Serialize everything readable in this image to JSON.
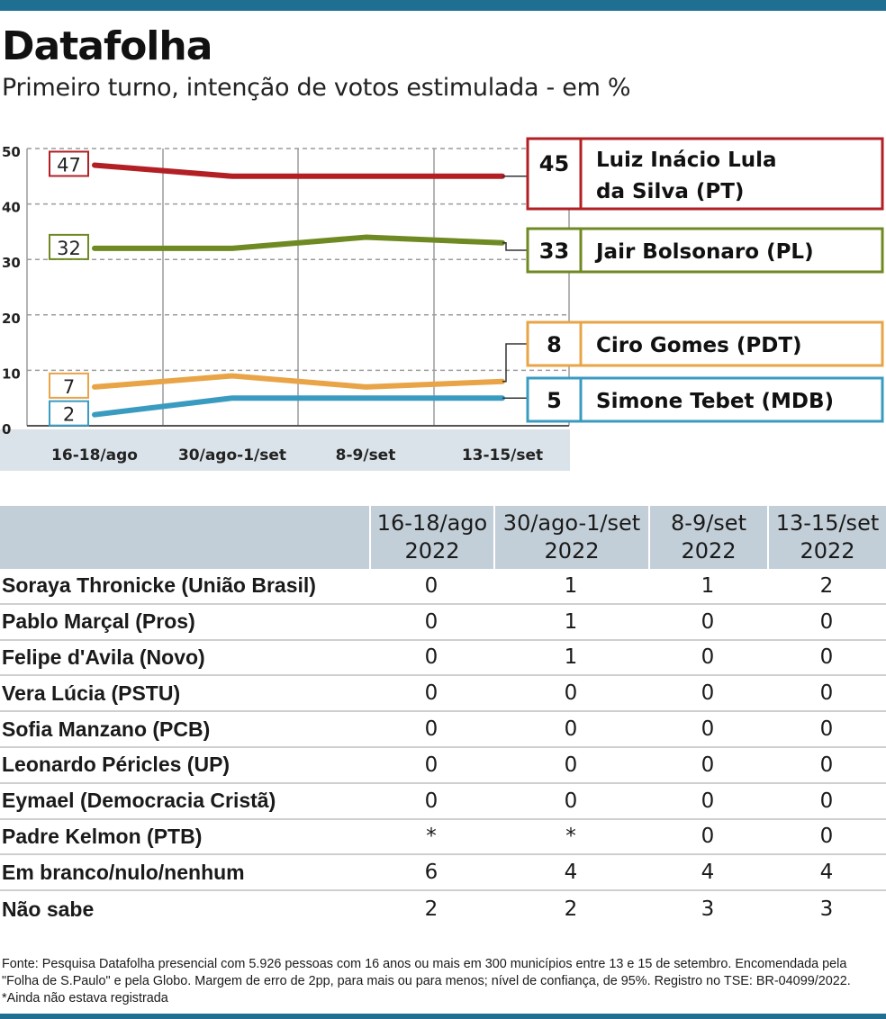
{
  "header": {
    "title": "Datafolha",
    "subtitle": "Primeiro turno, intenção de votos estimulada - em %"
  },
  "chart_data": {
    "type": "line",
    "categories": [
      "16-18/ago",
      "30/ago-1/set",
      "8-9/set",
      "13-15/set"
    ],
    "ylim": [
      0,
      50
    ],
    "yticks": [
      0,
      10,
      20,
      30,
      40,
      50
    ],
    "grid": true,
    "series": [
      {
        "name": "Luiz Inácio Lula da Silva (PT)",
        "name_lines": [
          "Luiz Inácio Lula",
          "da Silva (PT)"
        ],
        "values": [
          47,
          45,
          45,
          45
        ],
        "start_label": "47",
        "end_label": "45",
        "color": "#b21f24"
      },
      {
        "name": "Jair Bolsonaro (PL)",
        "name_lines": [
          "Jair Bolsonaro (PL)"
        ],
        "values": [
          32,
          32,
          34,
          33
        ],
        "start_label": "32",
        "end_label": "33",
        "color": "#6f8a22"
      },
      {
        "name": "Ciro Gomes (PDT)",
        "name_lines": [
          "Ciro Gomes (PDT)"
        ],
        "values": [
          7,
          9,
          7,
          8
        ],
        "start_label": "7",
        "end_label": "8",
        "color": "#e8a447"
      },
      {
        "name": "Simone Tebet (MDB)",
        "name_lines": [
          "Simone Tebet (MDB)"
        ],
        "values": [
          2,
          5,
          5,
          5
        ],
        "start_label": "2",
        "end_label": "5",
        "color": "#3a9bc1"
      }
    ]
  },
  "table": {
    "columns": [
      {
        "period": "16-18/ago",
        "year": "2022"
      },
      {
        "period": "30/ago-1/set",
        "year": "2022"
      },
      {
        "period": "8-9/set",
        "year": "2022"
      },
      {
        "period": "13-15/set",
        "year": "2022"
      }
    ],
    "rows": [
      {
        "label": "Soraya Thronicke (União Brasil)",
        "values": [
          "0",
          "1",
          "1",
          "2"
        ]
      },
      {
        "label": "Pablo Marçal (Pros)",
        "values": [
          "0",
          "1",
          "0",
          "0"
        ]
      },
      {
        "label": "Felipe d'Avila (Novo)",
        "values": [
          "0",
          "1",
          "0",
          "0"
        ]
      },
      {
        "label": "Vera Lúcia (PSTU)",
        "values": [
          "0",
          "0",
          "0",
          "0"
        ]
      },
      {
        "label": "Sofia Manzano (PCB)",
        "values": [
          "0",
          "0",
          "0",
          "0"
        ]
      },
      {
        "label": "Leonardo Péricles (UP)",
        "values": [
          "0",
          "0",
          "0",
          "0"
        ]
      },
      {
        "label": "Eymael (Democracia Cristã)",
        "values": [
          "0",
          "0",
          "0",
          "0"
        ]
      },
      {
        "label": "Padre Kelmon (PTB)",
        "values": [
          "*",
          "*",
          "0",
          "0"
        ]
      },
      {
        "label": "Em branco/nulo/nenhum",
        "values": [
          "6",
          "4",
          "4",
          "4"
        ]
      },
      {
        "label": "Não sabe",
        "values": [
          "2",
          "2",
          "3",
          "3"
        ]
      }
    ]
  },
  "footnote": "Fonte: Pesquisa Datafolha presencial com 5.926 pessoas com 16 anos ou mais em 300 municípios entre 13 e 15 de setembro. Encomendada pela \"Folha de S.Paulo\" e pela Globo. Margem de erro de 2pp, para mais ou para menos; nível de confiança, de 95%. Registro no TSE: BR-04099/2022. *Ainda não estava registrada"
}
